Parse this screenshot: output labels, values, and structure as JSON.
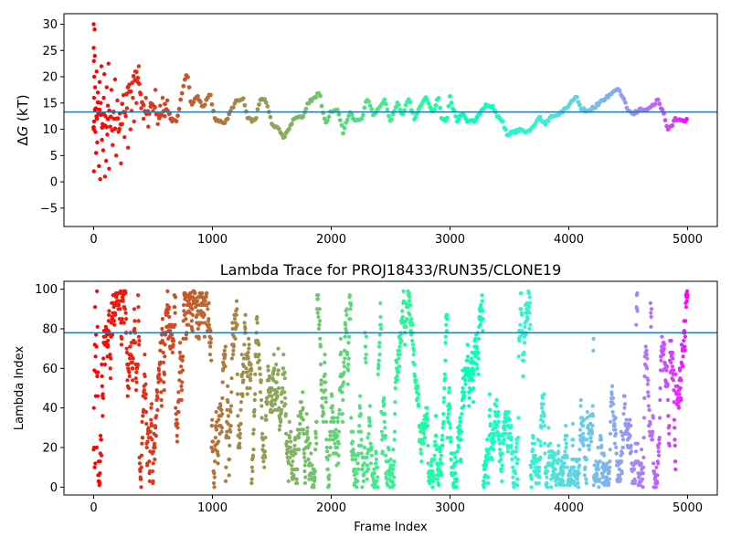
{
  "chart_data": [
    {
      "type": "scatter",
      "title": "",
      "xlabel": "",
      "ylabel_prefix": "Δ",
      "ylabel_symbol": "G",
      "ylabel_suffix": " (kT)",
      "xlim": [
        -250,
        5250
      ],
      "ylim": [
        -8.5,
        32
      ],
      "xticks": [
        0,
        1000,
        2000,
        3000,
        4000,
        5000
      ],
      "yticks": [
        -5,
        0,
        5,
        10,
        15,
        20,
        25,
        30
      ],
      "hline": 13.3,
      "hline_color": "#1f77b4",
      "colormap": "rainbow-reversed",
      "n_frames": 5000,
      "early_scatter": [
        [
          0,
          30
        ],
        [
          0,
          25.5
        ],
        [
          2,
          23
        ],
        [
          5,
          20
        ],
        [
          3,
          16
        ],
        [
          1,
          10
        ],
        [
          2,
          2
        ],
        [
          4,
          11.5
        ],
        [
          8,
          29
        ],
        [
          10,
          24
        ],
        [
          12,
          18
        ],
        [
          15,
          9.5
        ],
        [
          18,
          14
        ],
        [
          20,
          5.5
        ],
        [
          25,
          21
        ],
        [
          28,
          12
        ],
        [
          30,
          7.5
        ],
        [
          35,
          17
        ],
        [
          40,
          13
        ],
        [
          45,
          3
        ],
        [
          50,
          19
        ],
        [
          55,
          0.5
        ],
        [
          60,
          15
        ],
        [
          65,
          22
        ],
        [
          70,
          8
        ],
        [
          75,
          11
        ],
        [
          80,
          6
        ],
        [
          85,
          16
        ],
        [
          90,
          20.5
        ],
        [
          95,
          1
        ],
        [
          100,
          12.5
        ],
        [
          105,
          4
        ],
        [
          110,
          18
        ],
        [
          115,
          9
        ],
        [
          120,
          14.5
        ],
        [
          125,
          22.5
        ],
        [
          130,
          2.5
        ],
        [
          140,
          10.5
        ],
        [
          150,
          17.5
        ],
        [
          160,
          7
        ],
        [
          170,
          12
        ],
        [
          180,
          19.5
        ],
        [
          190,
          5
        ],
        [
          200,
          15.5
        ],
        [
          210,
          9.5
        ],
        [
          220,
          13
        ],
        [
          230,
          3.5
        ],
        [
          240,
          11
        ],
        [
          250,
          16.5
        ],
        [
          260,
          8.5
        ],
        [
          270,
          12.5
        ],
        [
          280,
          14
        ],
        [
          290,
          6.5
        ],
        [
          300,
          18.5
        ],
        [
          310,
          10
        ],
        [
          320,
          13.5
        ],
        [
          330,
          16
        ],
        [
          340,
          11.5
        ],
        [
          350,
          21
        ],
        [
          360,
          15
        ],
        [
          370,
          19
        ],
        [
          380,
          22
        ],
        [
          390,
          17
        ],
        [
          400,
          14
        ],
        [
          420,
          12
        ],
        [
          440,
          16
        ],
        [
          460,
          10.5
        ],
        [
          480,
          15
        ],
        [
          500,
          13.5
        ],
        [
          520,
          17.5
        ],
        [
          540,
          11
        ],
        [
          560,
          14.5
        ],
        [
          580,
          16
        ],
        [
          600,
          12.5
        ],
        [
          620,
          15.5
        ],
        [
          640,
          13
        ],
        [
          660,
          11.5
        ]
      ],
      "trace": [
        [
          0,
          13
        ],
        [
          120,
          12
        ],
        [
          200,
          11
        ],
        [
          300,
          17
        ],
        [
          360,
          21
        ],
        [
          400,
          16
        ],
        [
          450,
          12.5
        ],
        [
          500,
          15
        ],
        [
          550,
          11.5
        ],
        [
          600,
          14.5
        ],
        [
          650,
          12
        ],
        [
          700,
          11.5
        ],
        [
          760,
          19
        ],
        [
          790,
          20.5
        ],
        [
          820,
          14.5
        ],
        [
          870,
          16.5
        ],
        [
          920,
          14
        ],
        [
          980,
          17
        ],
        [
          1020,
          12
        ],
        [
          1100,
          11
        ],
        [
          1200,
          15.5
        ],
        [
          1260,
          16
        ],
        [
          1300,
          12
        ],
        [
          1360,
          11.5
        ],
        [
          1400,
          15.5
        ],
        [
          1450,
          15.5
        ],
        [
          1500,
          11
        ],
        [
          1560,
          10
        ],
        [
          1600,
          8.5
        ],
        [
          1700,
          12.5
        ],
        [
          1760,
          12
        ],
        [
          1800,
          15
        ],
        [
          1860,
          16
        ],
        [
          1900,
          17
        ],
        [
          1950,
          11
        ],
        [
          2000,
          13.5
        ],
        [
          2050,
          14
        ],
        [
          2100,
          9.5
        ],
        [
          2160,
          13.5
        ],
        [
          2200,
          11.5
        ],
        [
          2260,
          12
        ],
        [
          2300,
          16
        ],
        [
          2360,
          12.5
        ],
        [
          2400,
          14
        ],
        [
          2450,
          15.5
        ],
        [
          2500,
          11.5
        ],
        [
          2560,
          15
        ],
        [
          2600,
          12.5
        ],
        [
          2650,
          16
        ],
        [
          2700,
          12
        ],
        [
          2760,
          15
        ],
        [
          2800,
          16
        ],
        [
          2860,
          13
        ],
        [
          2900,
          16.5
        ],
        [
          2930,
          12
        ],
        [
          2970,
          11.5
        ],
        [
          3000,
          16
        ],
        [
          3060,
          11.5
        ],
        [
          3100,
          13
        ],
        [
          3150,
          11.5
        ],
        [
          3200,
          11.5
        ],
        [
          3250,
          13
        ],
        [
          3300,
          14.5
        ],
        [
          3360,
          14.5
        ],
        [
          3400,
          12.5
        ],
        [
          3440,
          11.5
        ],
        [
          3480,
          9
        ],
        [
          3550,
          9.5
        ],
        [
          3600,
          10
        ],
        [
          3650,
          9.5
        ],
        [
          3700,
          10.5
        ],
        [
          3750,
          12.5
        ],
        [
          3800,
          11
        ],
        [
          3850,
          12.5
        ],
        [
          3900,
          12.5
        ],
        [
          3950,
          13.5
        ],
        [
          4000,
          14.5
        ],
        [
          4060,
          16.5
        ],
        [
          4100,
          14
        ],
        [
          4150,
          13.5
        ],
        [
          4200,
          14
        ],
        [
          4260,
          15
        ],
        [
          4320,
          16
        ],
        [
          4380,
          17
        ],
        [
          4420,
          17.5
        ],
        [
          4450,
          16.5
        ],
        [
          4500,
          13.5
        ],
        [
          4550,
          13
        ],
        [
          4600,
          14
        ],
        [
          4650,
          13.5
        ],
        [
          4700,
          14.5
        ],
        [
          4750,
          15.5
        ],
        [
          4800,
          13
        ],
        [
          4830,
          10
        ],
        [
          4860,
          10.5
        ],
        [
          4900,
          12
        ],
        [
          4950,
          11.8
        ],
        [
          5000,
          11.8
        ]
      ]
    },
    {
      "type": "scatter",
      "title": "Lambda Trace for PROJ18433/RUN35/CLONE19",
      "xlabel": "Frame Index",
      "ylabel": "Lambda Index",
      "xlim": [
        -250,
        5250
      ],
      "ylim": [
        -4,
        104
      ],
      "xticks": [
        0,
        1000,
        2000,
        3000,
        4000,
        5000
      ],
      "yticks": [
        0,
        20,
        40,
        60,
        80,
        100
      ],
      "hline": 78,
      "hline_color": "#1f77b4",
      "colormap": "rainbow-reversed",
      "n_frames": 5000,
      "lambda_min": 0,
      "lambda_max": 99
    }
  ],
  "colors": {
    "axis": "#000000",
    "background": "#ffffff"
  }
}
